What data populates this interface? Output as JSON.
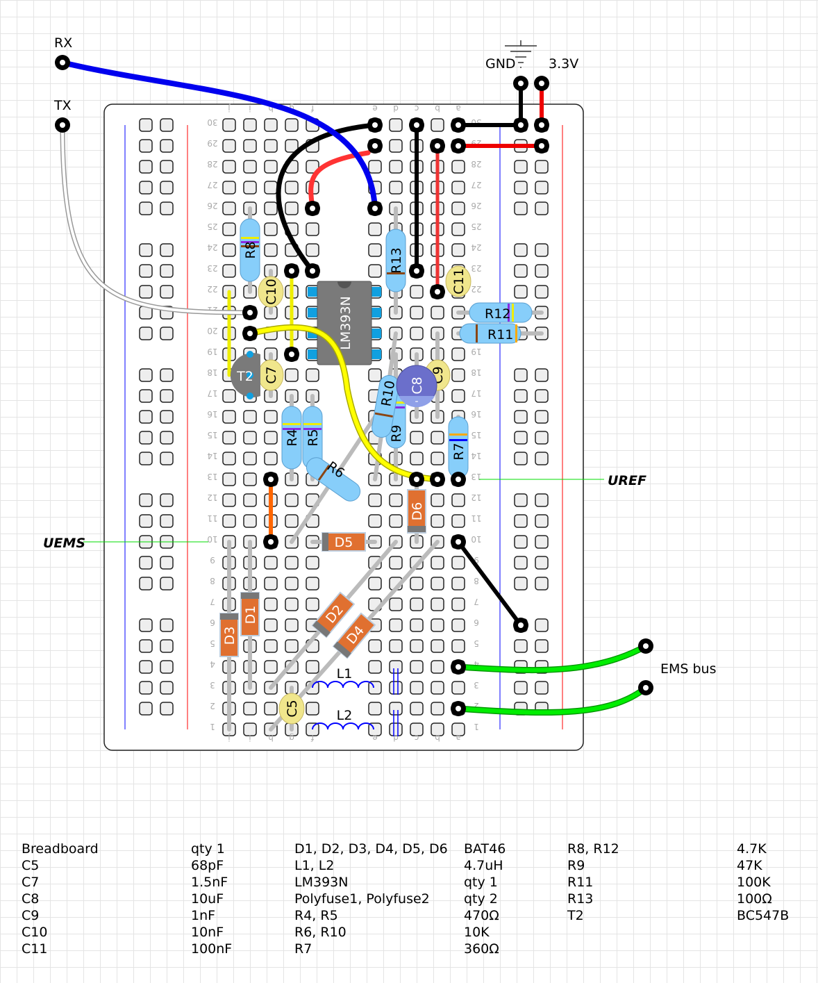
{
  "breadboard": {
    "columns_left": [
      "j",
      "i",
      "h",
      "g",
      "f"
    ],
    "columns_right": [
      "e",
      "d",
      "c",
      "b",
      "a"
    ],
    "row_numbers": [
      "1",
      "2",
      "3",
      "4",
      "5",
      "6",
      "7",
      "8",
      "9",
      "10",
      "11",
      "12",
      "13",
      "14",
      "15",
      "16",
      "17",
      "18",
      "19",
      "20",
      "21",
      "22",
      "23",
      "24",
      "25",
      "26",
      "27",
      "28",
      "29",
      "30"
    ]
  },
  "connectors": {
    "rx": "RX",
    "tx": "TX",
    "gnd": "GND",
    "vcc": "3.3V",
    "ems_bus": "EMS bus"
  },
  "nets": {
    "uems": "UEMS",
    "uref": "UREF"
  },
  "components": {
    "ic": "LM393N",
    "t2": "T2",
    "r4": "R4",
    "r5": "R5",
    "r6": "R6",
    "r7": "R7",
    "r8": "R8",
    "r9": "R9",
    "r10": "R10",
    "r11": "R11",
    "r12": "R12",
    "r13": "R13",
    "c5": "C5",
    "c7": "C7",
    "c8": "C8",
    "c9": "C9",
    "c10": "C10",
    "c11": "C11",
    "d1": "D1",
    "d2": "D2",
    "d3": "D3",
    "d4": "D4",
    "d5": "D5",
    "d6": "D6",
    "l1": "L1",
    "l2": "L2"
  },
  "colors": {
    "resistor": "#87cefa",
    "diode": "#e07030",
    "capacitor": "#f0e68c",
    "electrolytic": "#6b6fcb",
    "ic": "#7a7a7a",
    "wire_rx": "#0000ff",
    "wire_vcc": "#ff0000",
    "wire_ems": "#00ee00",
    "wire_yellow": "#ffff00",
    "net_line": "#00dd00"
  },
  "bom": {
    "col1": [
      "Breadboard",
      "C5",
      "C7",
      "C8",
      "C9",
      "C10",
      "C11"
    ],
    "col2": [
      "qty 1",
      "68pF",
      "1.5nF",
      "10uF",
      "1nF",
      "10nF",
      "100nF"
    ],
    "col3": [
      "D1, D2, D3, D4, D5, D6",
      "L1, L2",
      "LM393N",
      "Polyfuse1, Polyfuse2",
      "R4, R5",
      "R6, R10",
      "R7"
    ],
    "col4": [
      "BAT46",
      "4.7uH",
      "qty 1",
      "qty 2",
      "470Ω",
      "10K",
      "360Ω"
    ],
    "col5": [
      "R8, R12",
      "R9",
      "R11",
      "R13",
      "T2"
    ],
    "col6": [
      "4.7K",
      "47K",
      "100K",
      "100Ω",
      "BC547B"
    ]
  }
}
